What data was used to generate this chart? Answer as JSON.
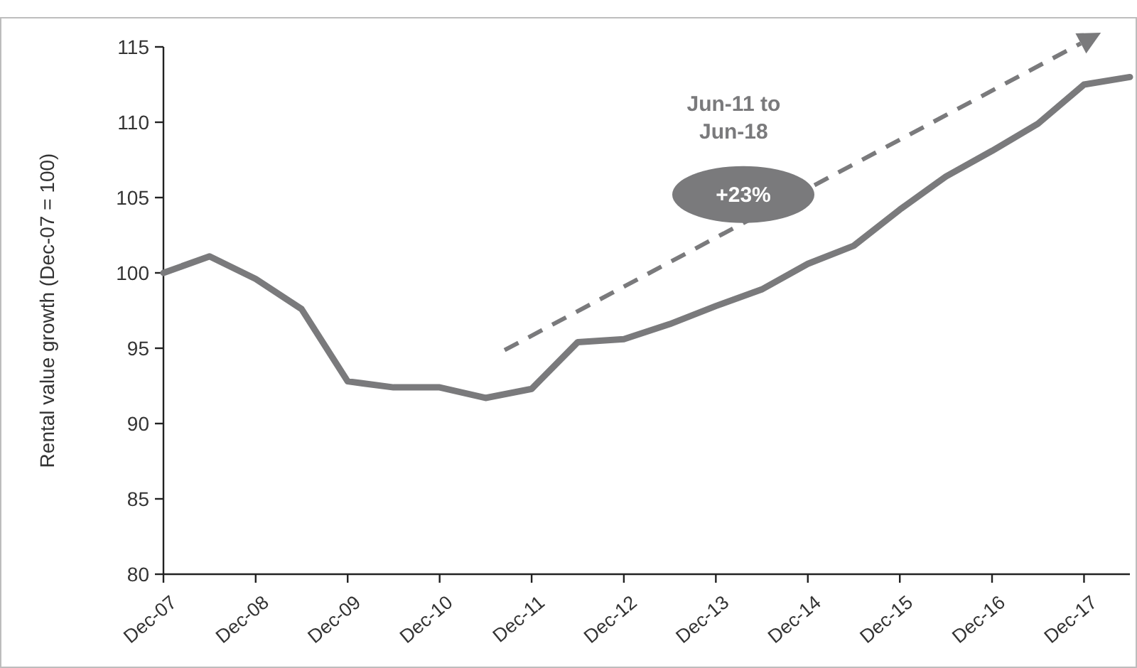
{
  "chart_data": {
    "type": "line",
    "ylabel": "Rental value growth (Dec-07 = 100)",
    "x": [
      "2007-12",
      "2008-06",
      "2008-12",
      "2009-06",
      "2009-12",
      "2010-06",
      "2010-12",
      "2011-06",
      "2011-12",
      "2012-06",
      "2012-12",
      "2013-06",
      "2013-12",
      "2014-06",
      "2014-12",
      "2015-06",
      "2015-12",
      "2016-06",
      "2016-12",
      "2017-06",
      "2017-12",
      "2018-06"
    ],
    "series": [
      {
        "color": "#7a7a7c",
        "values": [
          100.0,
          101.1,
          99.6,
          97.6,
          92.8,
          92.4,
          92.4,
          91.7,
          92.3,
          95.4,
          95.6,
          96.6,
          97.8,
          98.9,
          100.6,
          101.8,
          104.2,
          106.4,
          108.1,
          109.9,
          112.5,
          113.0
        ]
      }
    ],
    "xlim": [
      "2007-12",
      "2018-06"
    ],
    "xticks": [
      {
        "value": "2007-12",
        "label": "Dec-07"
      },
      {
        "value": "2008-12",
        "label": "Dec-08"
      },
      {
        "value": "2009-12",
        "label": "Dec-09"
      },
      {
        "value": "2010-12",
        "label": "Dec-10"
      },
      {
        "value": "2011-12",
        "label": "Dec-11"
      },
      {
        "value": "2012-12",
        "label": "Dec-12"
      },
      {
        "value": "2013-12",
        "label": "Dec-13"
      },
      {
        "value": "2014-12",
        "label": "Dec-14"
      },
      {
        "value": "2015-12",
        "label": "Dec-15"
      },
      {
        "value": "2016-12",
        "label": "Dec-16"
      },
      {
        "value": "2017-12",
        "label": "Dec-17"
      }
    ],
    "ylim": [
      80,
      115
    ],
    "yticks": [
      80,
      85,
      90,
      95,
      100,
      105,
      110,
      115
    ],
    "grid": false,
    "marker": "none",
    "line_style": "solid",
    "annotations": [
      "Jun-11 to Jun-18",
      "+23%"
    ]
  }
}
